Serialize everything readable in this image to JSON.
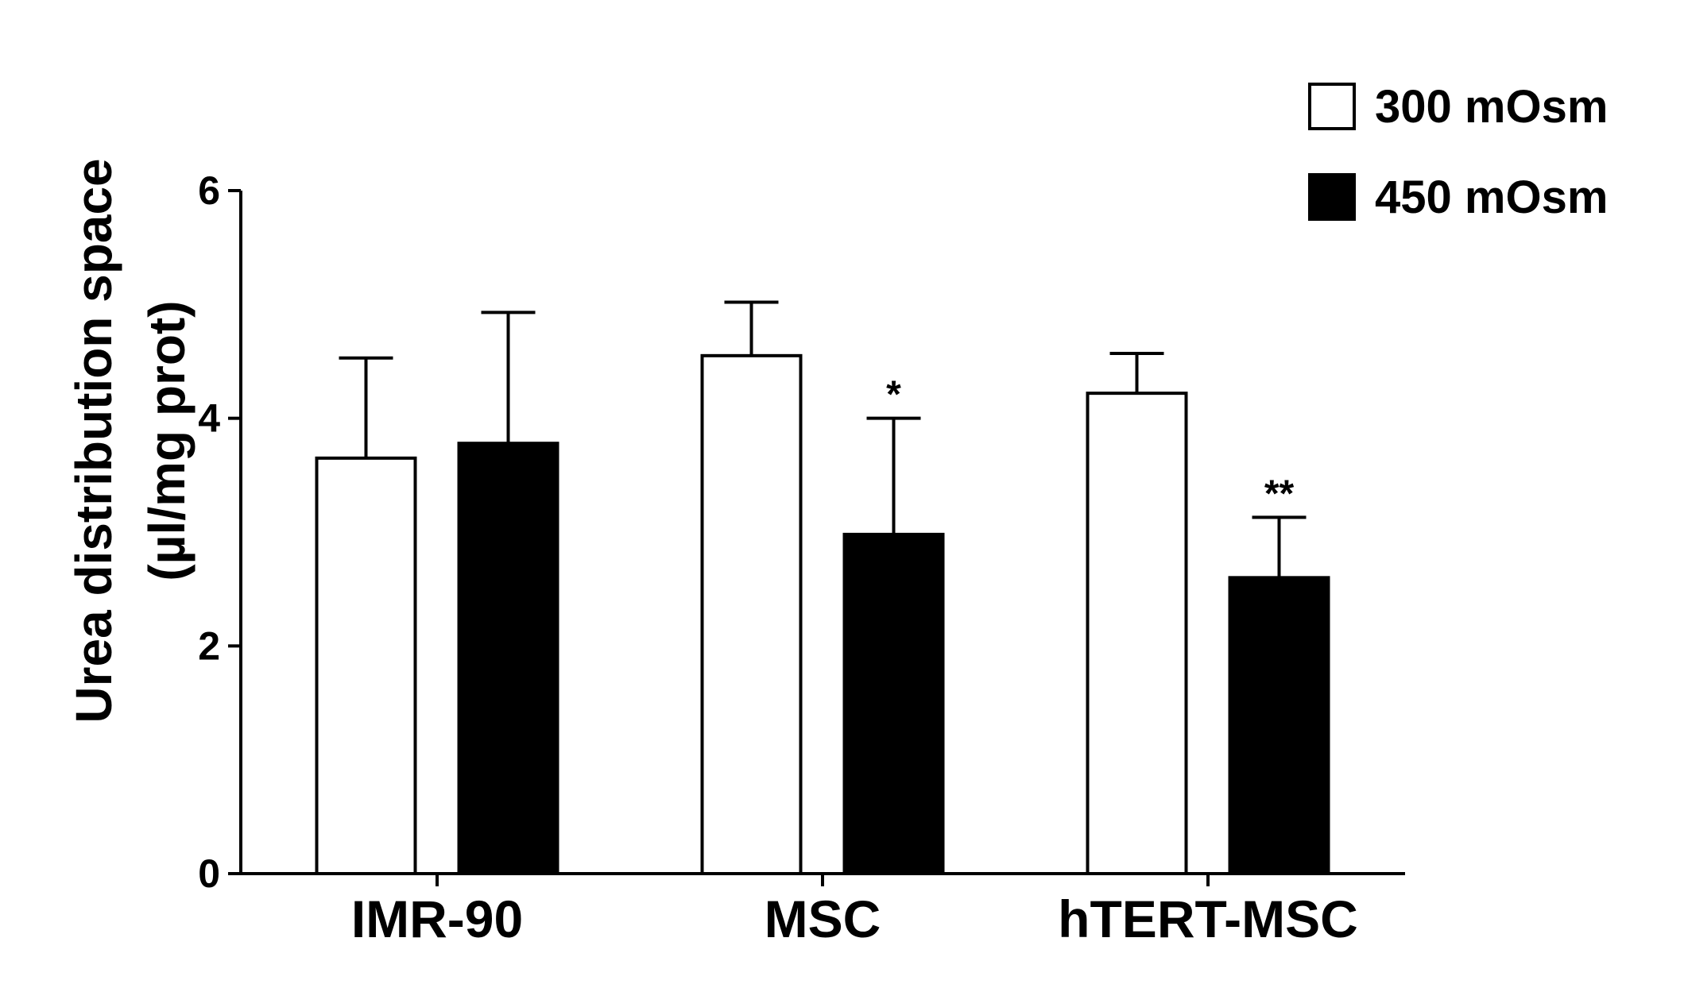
{
  "chart_data": {
    "type": "bar",
    "categories": [
      "IMR-90",
      "MSC",
      "hTERT-MSC"
    ],
    "series": [
      {
        "name": "300 mOsm",
        "color": "#ffffff",
        "values": [
          3.65,
          4.55,
          4.22
        ],
        "errors": [
          0.88,
          0.47,
          0.35
        ],
        "annotations": [
          "",
          "",
          ""
        ]
      },
      {
        "name": "450 mOsm",
        "color": "#000000",
        "values": [
          3.78,
          2.98,
          2.6
        ],
        "errors": [
          1.15,
          1.02,
          0.53
        ],
        "annotations": [
          "",
          "*",
          "**"
        ]
      }
    ],
    "ylabel_lines": [
      "Urea distribution space",
      "(µl/mg prot)"
    ],
    "xlabel": "",
    "ylim": [
      0,
      6
    ],
    "yticks": [
      0,
      2,
      4,
      6
    ],
    "grid": false,
    "legend_position": "top-right"
  }
}
